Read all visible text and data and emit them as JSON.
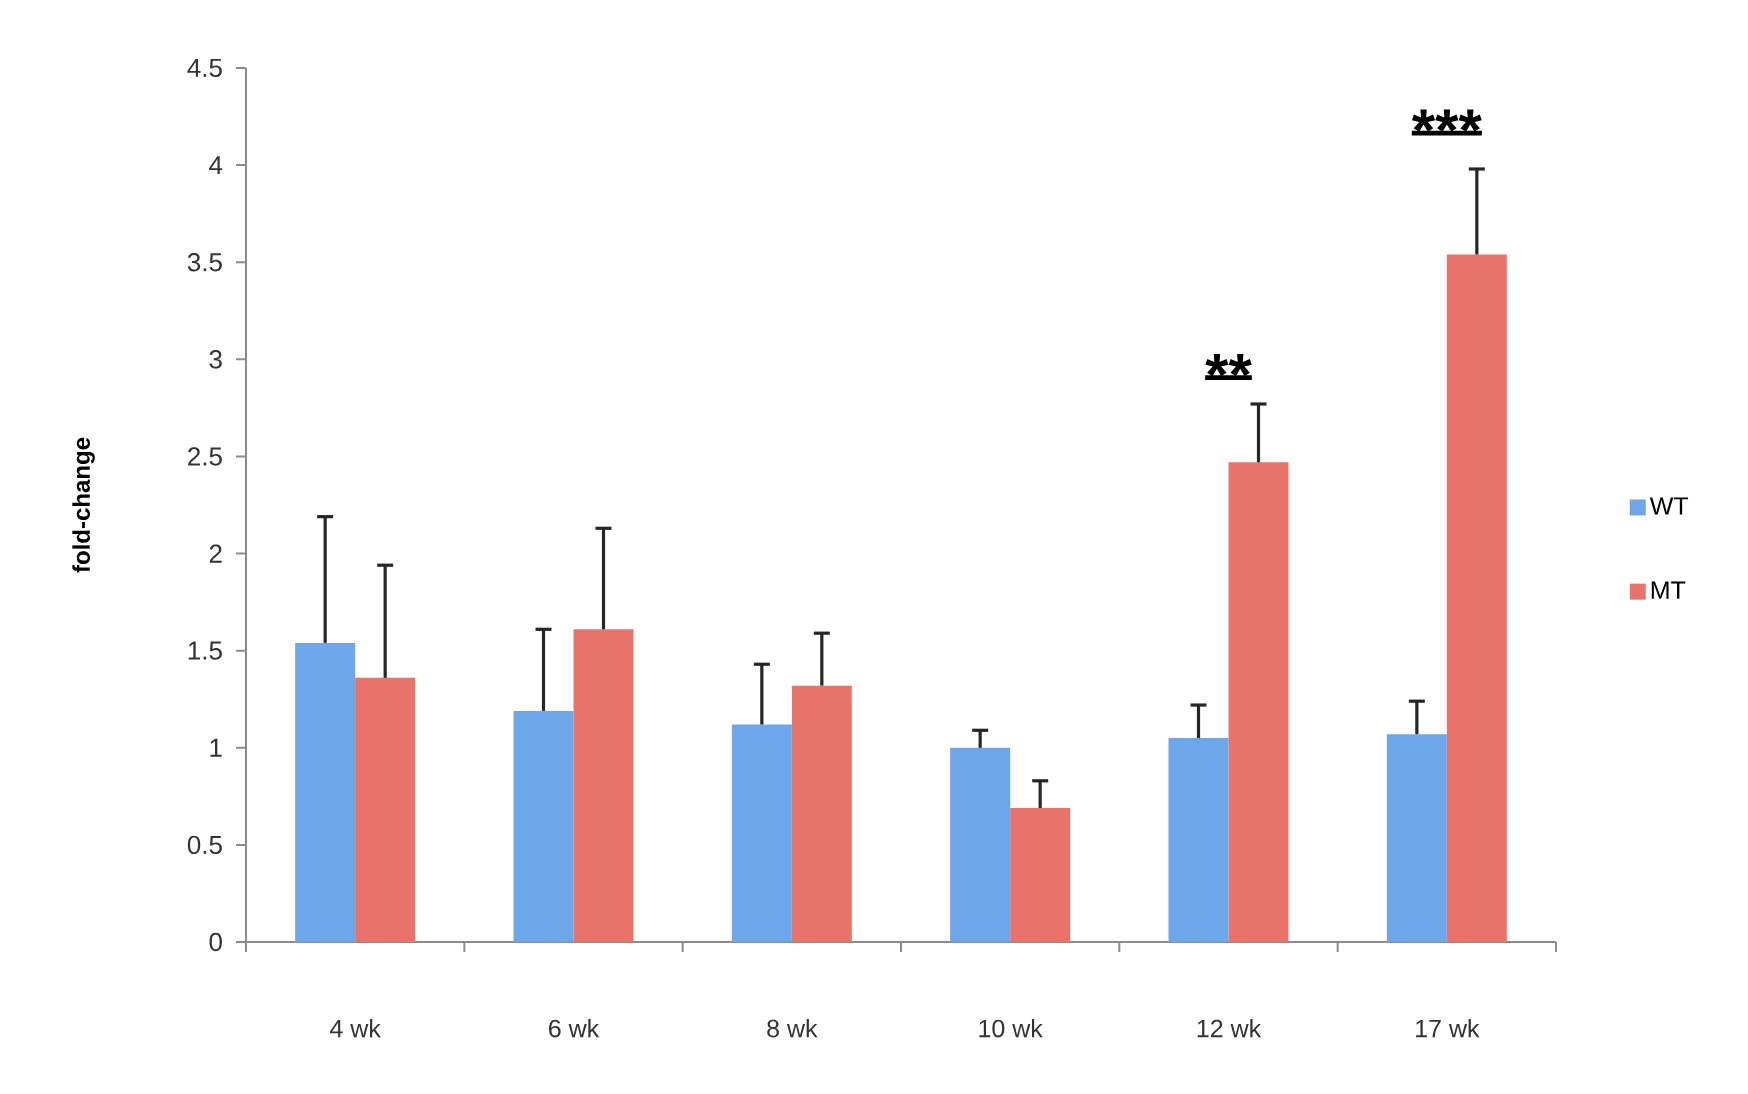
{
  "chart_data": {
    "type": "bar",
    "ylabel": "fold-change",
    "categories": [
      "4 wk",
      "6 wk",
      "8 wk",
      "10 wk",
      "12 wk",
      "17 wk"
    ],
    "series": [
      {
        "name": "WT",
        "color": "#6ea6ea",
        "values": [
          1.54,
          1.19,
          1.12,
          1.0,
          1.05,
          1.07
        ],
        "errors": [
          [
            1.54,
            2.19
          ],
          [
            1.19,
            1.61
          ],
          [
            1.12,
            1.43
          ],
          [
            1.0,
            1.09
          ],
          [
            1.05,
            1.22
          ],
          [
            1.07,
            1.24
          ]
        ]
      },
      {
        "name": "MT",
        "color": "#e8736b",
        "values": [
          1.36,
          1.61,
          1.32,
          0.69,
          2.47,
          3.54
        ],
        "errors": [
          [
            1.36,
            1.94
          ],
          [
            1.61,
            2.13
          ],
          [
            1.32,
            1.59
          ],
          [
            0.69,
            0.83
          ],
          [
            2.47,
            2.77
          ],
          [
            3.54,
            3.98
          ]
        ]
      }
    ],
    "ylim": [
      0,
      4.5
    ],
    "yticks": [
      0,
      0.5,
      1,
      1.5,
      2,
      2.5,
      3,
      3.5,
      4,
      4.5
    ],
    "legend": "right",
    "annotations": [
      "**",
      "***"
    ]
  }
}
